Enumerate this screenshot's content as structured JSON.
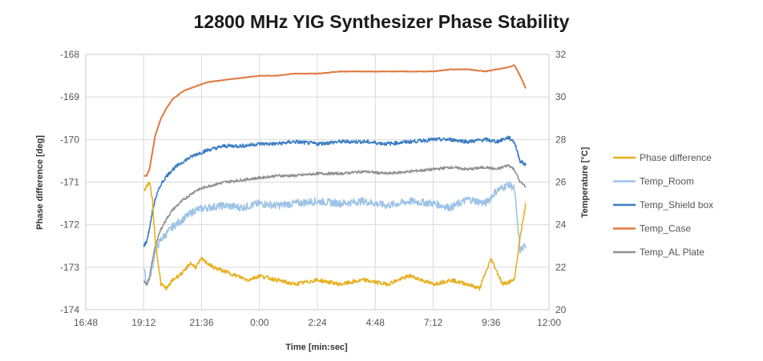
{
  "chart_data": {
    "type": "line",
    "title": "12800 MHz YIG Synthesizer Phase Stability",
    "xlabel": "Time [min:sec]",
    "ylabel": "Phase difference [deg]",
    "y2label": "Temperature [°C]",
    "x_ticks": [
      "16:48",
      "19:12",
      "21:36",
      "0:00",
      "2:24",
      "4:48",
      "7:12",
      "9:36",
      "12:00"
    ],
    "ylim": [
      -174,
      -168
    ],
    "y_ticks": [
      "-174",
      "-173",
      "-172",
      "-171",
      "-170",
      "-169",
      "-168"
    ],
    "y2lim": [
      20,
      32
    ],
    "y2_ticks": [
      "20",
      "22",
      "24",
      "26",
      "28",
      "30",
      "32"
    ],
    "grid": true,
    "legend_position": "right",
    "x_range_ticks": [
      0,
      8
    ],
    "series": [
      {
        "name": "Phase difference",
        "axis": "left",
        "color": "#e8b020",
        "x": [
          1.0,
          1.05,
          1.1,
          1.15,
          1.2,
          1.3,
          1.4,
          1.5,
          1.6,
          1.7,
          1.8,
          1.9,
          2.0,
          2.2,
          2.4,
          2.6,
          2.8,
          3.0,
          3.3,
          3.6,
          4.0,
          4.4,
          4.8,
          5.2,
          5.6,
          6.0,
          6.3,
          6.6,
          6.8,
          7.0,
          7.2,
          7.4,
          7.5,
          7.6
        ],
        "y": [
          -171.2,
          -171.1,
          -171.0,
          -171.4,
          -172.4,
          -173.4,
          -173.5,
          -173.3,
          -173.2,
          -173.1,
          -172.9,
          -173.0,
          -172.8,
          -173.0,
          -173.1,
          -173.2,
          -173.3,
          -173.2,
          -173.3,
          -173.4,
          -173.3,
          -173.4,
          -173.3,
          -173.4,
          -173.2,
          -173.4,
          -173.3,
          -173.4,
          -173.5,
          -172.8,
          -173.4,
          -173.3,
          -172.3,
          -171.5
        ]
      },
      {
        "name": "Temp_Room",
        "axis": "right",
        "color": "#9dc3e6",
        "x": [
          1.0,
          1.05,
          1.1,
          1.15,
          1.2,
          1.3,
          1.4,
          1.5,
          1.7,
          1.9,
          2.1,
          2.4,
          2.7,
          3.0,
          3.3,
          3.6,
          4.0,
          4.4,
          4.8,
          5.2,
          5.6,
          6.0,
          6.3,
          6.6,
          6.9,
          7.1,
          7.3,
          7.4,
          7.5,
          7.6
        ],
        "y": [
          22.0,
          21.2,
          21.5,
          22.0,
          22.8,
          23.3,
          23.6,
          23.9,
          24.3,
          24.7,
          24.8,
          24.9,
          24.8,
          25.0,
          24.9,
          25.0,
          25.1,
          25.0,
          25.1,
          24.9,
          25.1,
          25.0,
          24.8,
          25.2,
          25.0,
          25.6,
          25.9,
          25.7,
          22.8,
          23.0
        ]
      },
      {
        "name": "Temp_Shield box",
        "axis": "right",
        "color": "#3a7cc3",
        "x": [
          1.0,
          1.05,
          1.1,
          1.15,
          1.2,
          1.3,
          1.4,
          1.5,
          1.7,
          1.9,
          2.1,
          2.4,
          2.7,
          3.0,
          3.3,
          3.6,
          4.0,
          4.4,
          4.8,
          5.2,
          5.6,
          6.0,
          6.3,
          6.6,
          6.9,
          7.1,
          7.3,
          7.4,
          7.5,
          7.6
        ],
        "y": [
          23.0,
          23.2,
          23.8,
          24.6,
          25.2,
          25.9,
          26.3,
          26.6,
          27.0,
          27.3,
          27.5,
          27.7,
          27.7,
          27.8,
          27.8,
          27.9,
          27.8,
          27.9,
          27.9,
          27.8,
          27.9,
          28.0,
          28.0,
          27.9,
          28.0,
          27.9,
          28.1,
          27.9,
          27.0,
          26.8
        ]
      },
      {
        "name": "Temp_Case",
        "axis": "right",
        "color": "#e07a40",
        "x": [
          1.0,
          1.05,
          1.1,
          1.15,
          1.2,
          1.3,
          1.4,
          1.5,
          1.7,
          1.9,
          2.1,
          2.4,
          2.7,
          3.0,
          3.3,
          3.6,
          4.0,
          4.4,
          4.8,
          5.2,
          5.6,
          6.0,
          6.3,
          6.6,
          6.9,
          7.1,
          7.3,
          7.4,
          7.5,
          7.6
        ],
        "y": [
          26.3,
          26.3,
          26.6,
          27.4,
          28.2,
          29.0,
          29.5,
          29.9,
          30.3,
          30.5,
          30.7,
          30.8,
          30.9,
          31.0,
          31.0,
          31.1,
          31.1,
          31.2,
          31.2,
          31.2,
          31.2,
          31.2,
          31.3,
          31.3,
          31.2,
          31.3,
          31.4,
          31.5,
          31.0,
          30.4
        ]
      },
      {
        "name": "Temp_AL Plate",
        "axis": "right",
        "color": "#909090",
        "x": [
          1.0,
          1.05,
          1.1,
          1.15,
          1.2,
          1.3,
          1.4,
          1.5,
          1.7,
          1.9,
          2.1,
          2.4,
          2.7,
          3.0,
          3.3,
          3.6,
          4.0,
          4.4,
          4.8,
          5.2,
          5.6,
          6.0,
          6.3,
          6.6,
          6.9,
          7.1,
          7.3,
          7.4,
          7.5,
          7.6
        ],
        "y": [
          21.4,
          21.2,
          21.5,
          22.3,
          23.0,
          23.8,
          24.3,
          24.7,
          25.2,
          25.6,
          25.8,
          26.0,
          26.1,
          26.2,
          26.3,
          26.3,
          26.4,
          26.4,
          26.5,
          26.4,
          26.5,
          26.6,
          26.7,
          26.6,
          26.7,
          26.6,
          26.8,
          26.6,
          26.0,
          25.8
        ]
      }
    ]
  }
}
